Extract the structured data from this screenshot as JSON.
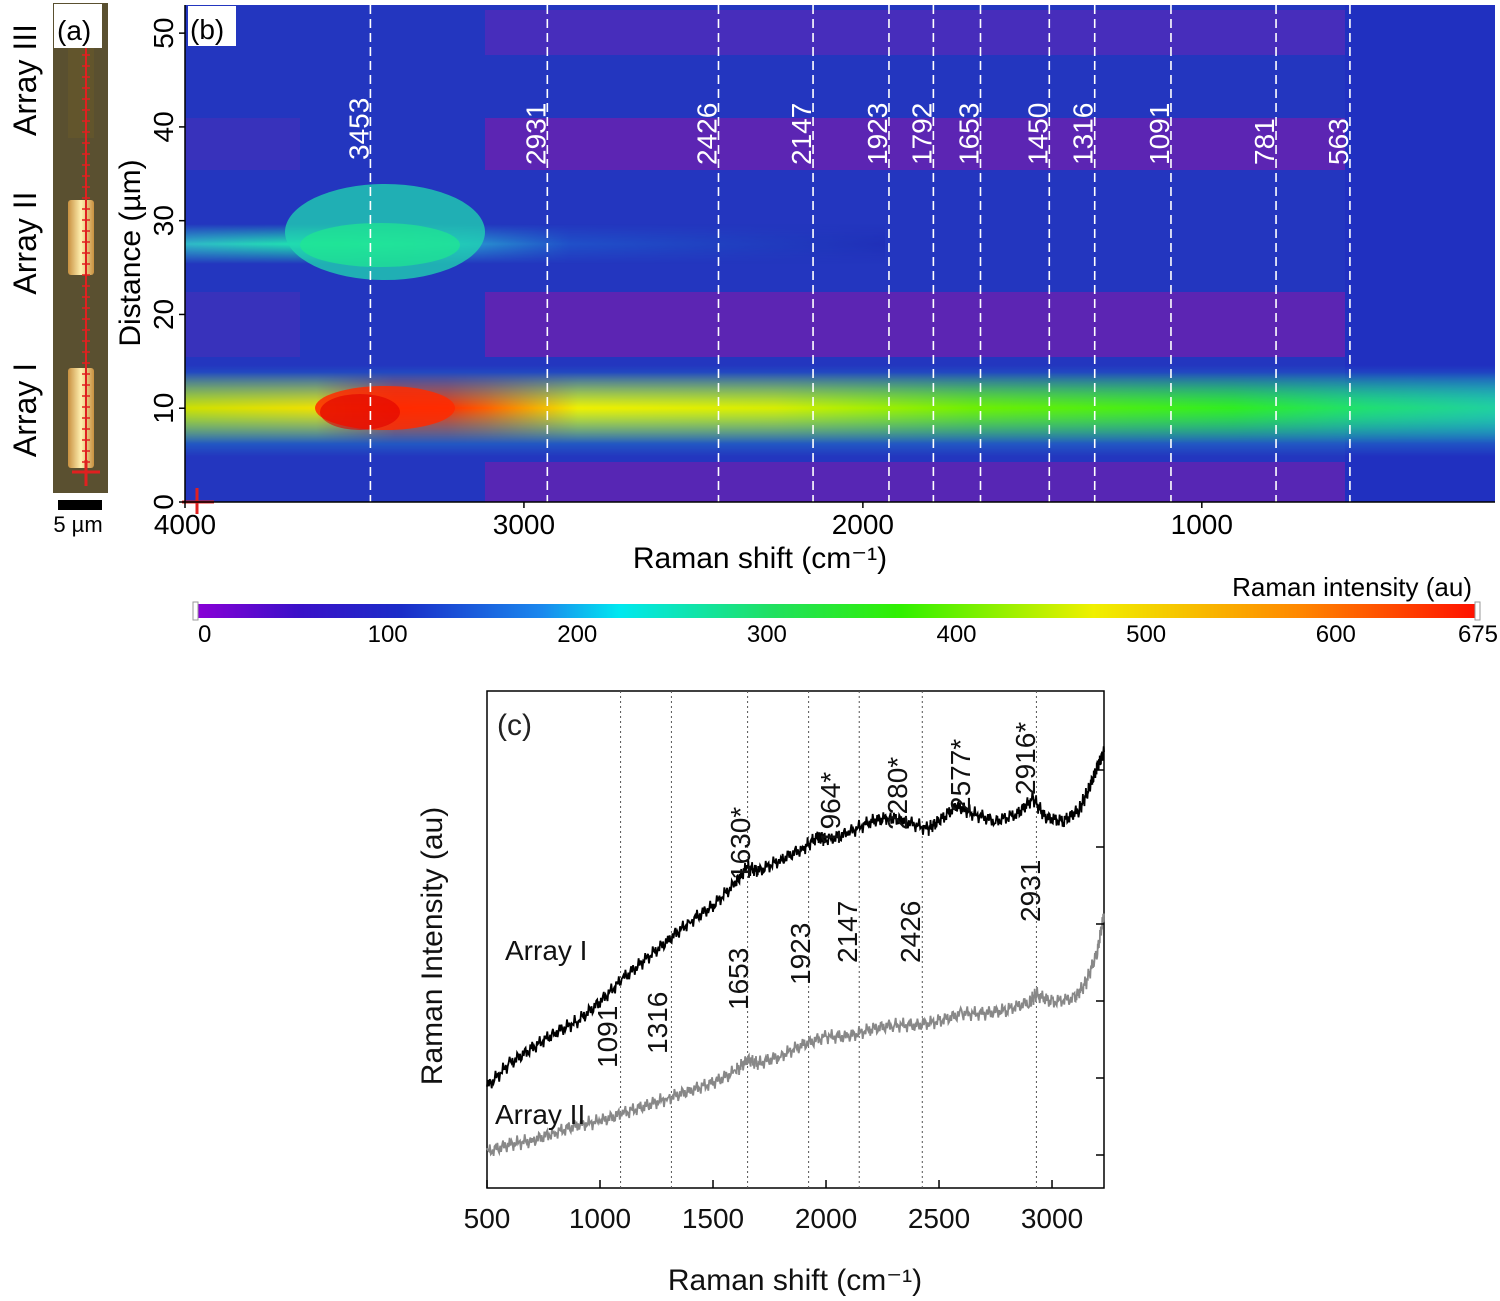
{
  "panel_a": {
    "label": "(a)",
    "scale_bar": "5 µm",
    "array_labels": [
      "Array III",
      "Array II",
      "Array I"
    ]
  },
  "panel_b": {
    "label": "(b)",
    "peak_labels": [
      "3453",
      "2931",
      "2426",
      "2147",
      "1923",
      "1792",
      "1653",
      "1450",
      "1316",
      "1091",
      "781",
      "563"
    ]
  },
  "colorbar": {
    "title": "Raman intensity (au)",
    "ticks": [
      "0",
      "100",
      "200",
      "300",
      "400",
      "500",
      "600",
      "675"
    ]
  },
  "panel_c": {
    "label": "(c)",
    "series_labels": [
      "Array I",
      "Array II"
    ],
    "peak_labels_upper": [
      "1630*",
      "1964*",
      "2280*",
      "2577*",
      "2916*"
    ],
    "peak_labels_lower": [
      "1091",
      "1316",
      "1653",
      "1923",
      "2147",
      "2426",
      "2931"
    ]
  },
  "chart_data": [
    {
      "type": "heatmap",
      "xlabel": "Raman shift (cm⁻¹)",
      "ylabel": "Distance (µm)",
      "xlim": [
        4000,
        135
      ],
      "ylim": [
        0,
        53
      ],
      "x_ticks": [
        "4000",
        "3000",
        "2000",
        "1000"
      ],
      "y_ticks": [
        "0",
        "10",
        "20",
        "30",
        "40",
        "50"
      ],
      "colorbar_range": [
        0,
        675
      ],
      "peak_lines": [
        3453,
        2931,
        2426,
        2147,
        1923,
        1792,
        1653,
        1450,
        1316,
        1091,
        781,
        563
      ],
      "bands": [
        {
          "array": "Array I",
          "y_range": [
            5,
            15
          ],
          "peak_intensity": 650,
          "peak_at": 3453
        },
        {
          "array": "Array II",
          "y_range": [
            24,
            35
          ],
          "peak_intensity": 300,
          "peak_at": 3453
        },
        {
          "array": "Array III",
          "y_range": [
            36,
            53
          ],
          "peak_intensity": 80
        }
      ],
      "background_intensity": 90
    },
    {
      "type": "line",
      "xlabel": "Raman shift (cm⁻¹)",
      "ylabel": "Raman Intensity (au)",
      "xlim": [
        500,
        3230
      ],
      "x_ticks": [
        "500",
        "1000",
        "1500",
        "2000",
        "2500",
        "3000"
      ],
      "peak_lines": [
        1091,
        1316,
        1653,
        1923,
        2147,
        2426,
        2931
      ],
      "series": [
        {
          "name": "Array I",
          "color": "#000000",
          "x": [
            500,
            600,
            700,
            800,
            900,
            1000,
            1100,
            1200,
            1300,
            1400,
            1500,
            1600,
            1650,
            1700,
            1800,
            1900,
            1964,
            2000,
            2100,
            2200,
            2280,
            2350,
            2450,
            2500,
            2577,
            2650,
            2750,
            2850,
            2916,
            2970,
            3050,
            3120,
            3160,
            3200,
            3230
          ],
          "y": [
            0.17,
            0.23,
            0.27,
            0.31,
            0.34,
            0.39,
            0.45,
            0.5,
            0.55,
            0.6,
            0.64,
            0.7,
            0.74,
            0.73,
            0.76,
            0.79,
            0.82,
            0.81,
            0.83,
            0.86,
            0.87,
            0.86,
            0.84,
            0.86,
            0.9,
            0.88,
            0.86,
            0.88,
            0.92,
            0.87,
            0.86,
            0.89,
            0.94,
            1.0,
            1.04
          ]
        },
        {
          "name": "Array II",
          "color": "#888888",
          "x": [
            500,
            600,
            700,
            800,
            900,
            1000,
            1100,
            1200,
            1300,
            1400,
            1500,
            1600,
            1653,
            1700,
            1800,
            1900,
            2000,
            2100,
            2200,
            2300,
            2400,
            2500,
            2600,
            2700,
            2800,
            2900,
            2931,
            3000,
            3100,
            3150,
            3200,
            3230
          ],
          "y": [
            0.0,
            0.02,
            0.03,
            0.05,
            0.07,
            0.08,
            0.1,
            0.12,
            0.14,
            0.16,
            0.18,
            0.21,
            0.24,
            0.23,
            0.25,
            0.28,
            0.3,
            0.3,
            0.32,
            0.33,
            0.33,
            0.34,
            0.36,
            0.36,
            0.37,
            0.39,
            0.41,
            0.39,
            0.4,
            0.44,
            0.52,
            0.62
          ]
        }
      ]
    }
  ]
}
